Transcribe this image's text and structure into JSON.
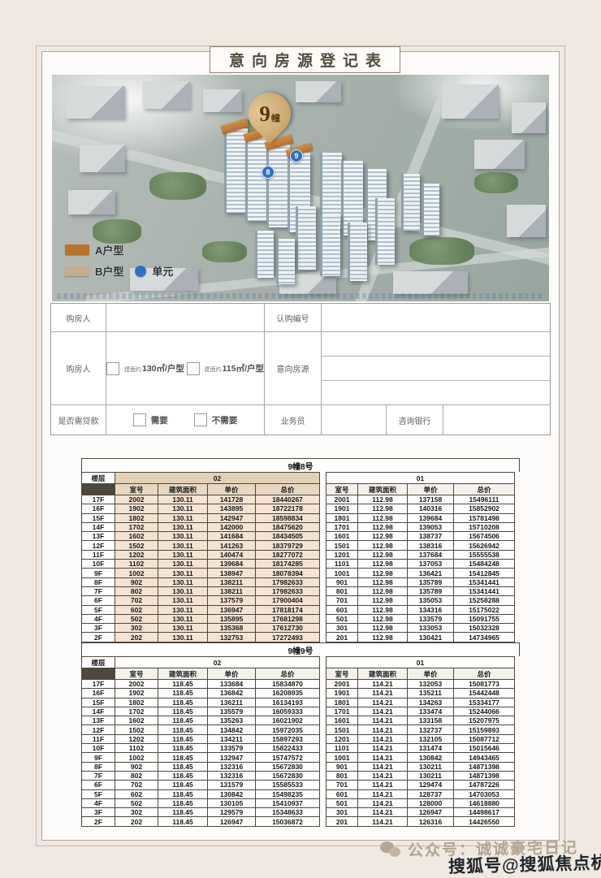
{
  "page": {
    "title": "意向房源登记表"
  },
  "hero": {
    "pin_number": "9",
    "pin_suffix": "幢",
    "marker_a": "9",
    "marker_b": "8",
    "legend": {
      "a_label": "A户型",
      "a_color": "#b9742c",
      "b_label": "B户型",
      "b_color": "#c6ad8c",
      "unit_label": "单元",
      "unit_color": "#2f6fc4"
    }
  },
  "form": {
    "buyer_label": "购房人",
    "subscription_label": "认购编号",
    "applicant_label": "购房人",
    "unit_options": [
      {
        "prefix": "建面约",
        "label": "130㎡/户型"
      },
      {
        "prefix": "建面约",
        "label": "115㎡/户型"
      }
    ],
    "intent_label": "意向房源",
    "loan_label": "是否需贷款",
    "loan_yes": "需要",
    "loan_no": "不需要",
    "agent_label": "业务员",
    "bank_label": "咨询银行"
  },
  "tables": [
    {
      "title": "9幢8号",
      "floor_label": "楼层",
      "groups": [
        {
          "name": "02",
          "headers": [
            "室号",
            "建筑面积",
            "单价",
            "总价"
          ]
        },
        {
          "name": "01",
          "headers": [
            "室号",
            "建筑面积",
            "单价",
            "总价"
          ]
        }
      ],
      "rows": [
        [
          "17F",
          "2002",
          "130.11",
          "141728",
          "18440267",
          "2001",
          "112.98",
          "137158",
          "15496111"
        ],
        [
          "16F",
          "1902",
          "130.11",
          "143895",
          "18722178",
          "1901",
          "112.98",
          "140316",
          "15852902"
        ],
        [
          "15F",
          "1802",
          "130.11",
          "142947",
          "18598834",
          "1801",
          "112.98",
          "139684",
          "15781498"
        ],
        [
          "14F",
          "1702",
          "130.11",
          "142000",
          "18475620",
          "1701",
          "112.98",
          "139053",
          "15710208"
        ],
        [
          "13F",
          "1602",
          "130.11",
          "141684",
          "18434505",
          "1601",
          "112.98",
          "138737",
          "15674506"
        ],
        [
          "12F",
          "1502",
          "130.11",
          "141263",
          "18379729",
          "1501",
          "112.98",
          "138316",
          "15626942"
        ],
        [
          "11F",
          "1202",
          "130.11",
          "140474",
          "18277072",
          "1201",
          "112.98",
          "137684",
          "15555538"
        ],
        [
          "10F",
          "1102",
          "130.11",
          "139684",
          "18174285",
          "1101",
          "112.98",
          "137053",
          "15484248"
        ],
        [
          "9F",
          "1002",
          "130.11",
          "138947",
          "18078394",
          "1001",
          "112.98",
          "136421",
          "15412845"
        ],
        [
          "8F",
          "902",
          "130.11",
          "138211",
          "17982633",
          "901",
          "112.98",
          "135789",
          "15341441"
        ],
        [
          "7F",
          "802",
          "130.11",
          "138211",
          "17982633",
          "801",
          "112.98",
          "135789",
          "15341441"
        ],
        [
          "6F",
          "702",
          "130.11",
          "137579",
          "17900404",
          "701",
          "112.98",
          "135053",
          "15258288"
        ],
        [
          "5F",
          "602",
          "130.11",
          "136947",
          "17818174",
          "601",
          "112.98",
          "134316",
          "15175022"
        ],
        [
          "4F",
          "502",
          "130.11",
          "135895",
          "17681298",
          "501",
          "112.98",
          "133579",
          "15091755"
        ],
        [
          "3F",
          "302",
          "130.11",
          "135368",
          "17612730",
          "301",
          "112.98",
          "133053",
          "15032328"
        ],
        [
          "2F",
          "202",
          "130.11",
          "132753",
          "17272493",
          "201",
          "112.98",
          "130421",
          "14734965"
        ]
      ]
    },
    {
      "title": "9幢9号",
      "floor_label": "楼层",
      "groups": [
        {
          "name": "02",
          "headers": [
            "室号",
            "建筑面积",
            "单价",
            "总价"
          ]
        },
        {
          "name": "01",
          "headers": [
            "室号",
            "建筑面积",
            "单价",
            "总价"
          ]
        }
      ],
      "rows": [
        [
          "17F",
          "2002",
          "118.45",
          "133684",
          "15834870",
          "2001",
          "114.21",
          "132053",
          "15081773"
        ],
        [
          "16F",
          "1902",
          "118.45",
          "136842",
          "16208935",
          "1901",
          "114.21",
          "135211",
          "15442448"
        ],
        [
          "15F",
          "1802",
          "118.45",
          "136211",
          "16134193",
          "1801",
          "114.21",
          "134263",
          "15334177"
        ],
        [
          "14F",
          "1702",
          "118.45",
          "135579",
          "16059333",
          "1701",
          "114.21",
          "133474",
          "15244066"
        ],
        [
          "13F",
          "1602",
          "118.45",
          "135263",
          "16021902",
          "1601",
          "114.21",
          "133158",
          "15207975"
        ],
        [
          "12F",
          "1502",
          "118.45",
          "134842",
          "15972035",
          "1501",
          "114.21",
          "132737",
          "15159893"
        ],
        [
          "11F",
          "1202",
          "118.45",
          "134211",
          "15897293",
          "1201",
          "114.21",
          "132105",
          "15087712"
        ],
        [
          "10F",
          "1102",
          "118.45",
          "133579",
          "15822433",
          "1101",
          "114.21",
          "131474",
          "15015646"
        ],
        [
          "9F",
          "1002",
          "118.45",
          "132947",
          "15747572",
          "1001",
          "114.21",
          "130842",
          "14943465"
        ],
        [
          "8F",
          "902",
          "118.45",
          "132316",
          "15672830",
          "901",
          "114.21",
          "130211",
          "14871398"
        ],
        [
          "7F",
          "802",
          "118.45",
          "132316",
          "15672830",
          "801",
          "114.21",
          "130211",
          "14871398"
        ],
        [
          "6F",
          "702",
          "118.45",
          "131579",
          "15585533",
          "701",
          "114.21",
          "129474",
          "14787226"
        ],
        [
          "5F",
          "602",
          "118.45",
          "130842",
          "15498235",
          "601",
          "114.21",
          "128737",
          "14703053"
        ],
        [
          "4F",
          "502",
          "118.45",
          "130105",
          "15410937",
          "501",
          "114.21",
          "128000",
          "14618880"
        ],
        [
          "3F",
          "302",
          "118.45",
          "129579",
          "15348633",
          "301",
          "114.21",
          "126947",
          "14498617"
        ],
        [
          "2F",
          "202",
          "118.45",
          "126947",
          "15036872",
          "201",
          "114.21",
          "126316",
          "14426550"
        ]
      ]
    }
  ],
  "footer": {
    "wechat_label": "公众号：诚诚豪宅日记",
    "watermark": "搜狐号@搜狐焦点杭州站"
  }
}
